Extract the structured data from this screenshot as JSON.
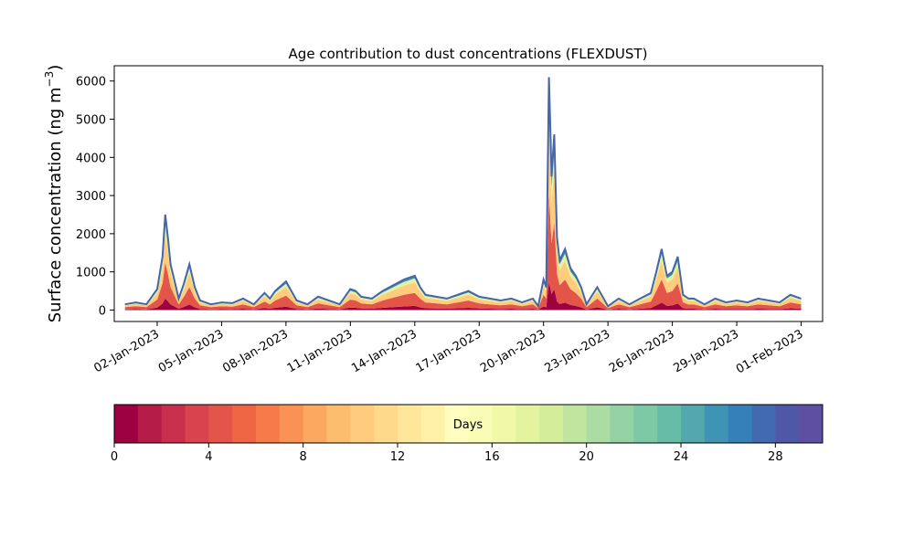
{
  "chart_data": {
    "type": "area",
    "subtype": "stacked",
    "title": "Age contribution to dust concentrations (FLEXDUST)",
    "ylabel": "Surface concentration (ng m",
    "ylabel_superscript": "−3",
    "ylabel_suffix": ")",
    "xlabel": "",
    "ylim": [
      -300,
      6400
    ],
    "xlim": [
      "2022-12-31",
      "2023-02-02"
    ],
    "yticks": [
      0,
      1000,
      2000,
      3000,
      4000,
      5000,
      6000
    ],
    "xtick_labels": [
      "02-Jan-2023",
      "05-Jan-2023",
      "08-Jan-2023",
      "11-Jan-2023",
      "14-Jan-2023",
      "17-Jan-2023",
      "20-Jan-2023",
      "23-Jan-2023",
      "26-Jan-2023",
      "29-Jan-2023",
      "01-Feb-2023"
    ],
    "xtick_dates": [
      "2023-01-02",
      "2023-01-05",
      "2023-01-08",
      "2023-01-11",
      "2023-01-14",
      "2023-01-17",
      "2023-01-20",
      "2023-01-23",
      "2023-01-26",
      "2023-01-29",
      "2023-02-01"
    ],
    "grid": false,
    "total_concentration": {
      "x": [
        "2022-12-31T12",
        "2023-01-01",
        "2023-01-01T12",
        "2023-01-01T18",
        "2023-01-02",
        "2023-01-02T06",
        "2023-01-02T09",
        "2023-01-02T12",
        "2023-01-02T15",
        "2023-01-02T18",
        "2023-01-03",
        "2023-01-03T06",
        "2023-01-03T12",
        "2023-01-03T18",
        "2023-01-04",
        "2023-01-04T06",
        "2023-01-04T12",
        "2023-01-05",
        "2023-01-05T12",
        "2023-01-06",
        "2023-01-06T12",
        "2023-01-07",
        "2023-01-07T06",
        "2023-01-07T12",
        "2023-01-08",
        "2023-01-08T12",
        "2023-01-09",
        "2023-01-09T12",
        "2023-01-10",
        "2023-01-10T12",
        "2023-01-11",
        "2023-01-11T06",
        "2023-01-11T12",
        "2023-01-12",
        "2023-01-12T12",
        "2023-01-13",
        "2023-01-13T12",
        "2023-01-14",
        "2023-01-14T06",
        "2023-01-14T12",
        "2023-01-15",
        "2023-01-15T12",
        "2023-01-16",
        "2023-01-16T12",
        "2023-01-17",
        "2023-01-17T12",
        "2023-01-18",
        "2023-01-18T12",
        "2023-01-19",
        "2023-01-19T12",
        "2023-01-19T18",
        "2023-01-20",
        "2023-01-20T03",
        "2023-01-20T06",
        "2023-01-20T09",
        "2023-01-20T12",
        "2023-01-20T15",
        "2023-01-20T18",
        "2023-01-21",
        "2023-01-21T06",
        "2023-01-21T12",
        "2023-01-21T18",
        "2023-01-22",
        "2023-01-22T12",
        "2023-01-23",
        "2023-01-23T06",
        "2023-01-23T12",
        "2023-01-24",
        "2023-01-24T12",
        "2023-01-25",
        "2023-01-25T06",
        "2023-01-25T12",
        "2023-01-25T18",
        "2023-01-26",
        "2023-01-26T06",
        "2023-01-26T12",
        "2023-01-26T18",
        "2023-01-27",
        "2023-01-27T12",
        "2023-01-28",
        "2023-01-28T12",
        "2023-01-29",
        "2023-01-29T12",
        "2023-01-30",
        "2023-01-30T12",
        "2023-01-31",
        "2023-01-31T12",
        "2023-02-01"
      ],
      "values": [
        150,
        200,
        150,
        350,
        550,
        1400,
        2500,
        1900,
        1200,
        900,
        300,
        700,
        1200,
        600,
        250,
        200,
        150,
        200,
        180,
        300,
        150,
        450,
        300,
        500,
        750,
        250,
        150,
        350,
        250,
        150,
        550,
        500,
        350,
        300,
        500,
        650,
        800,
        900,
        600,
        400,
        350,
        300,
        400,
        500,
        350,
        300,
        250,
        300,
        200,
        300,
        100,
        800,
        600,
        6100,
        3500,
        4600,
        1900,
        1300,
        1600,
        1100,
        900,
        600,
        150,
        600,
        100,
        200,
        300,
        150,
        300,
        450,
        1000,
        1600,
        900,
        1000,
        1400,
        400,
        300,
        300,
        150,
        300,
        200,
        250,
        200,
        300,
        250,
        200,
        400,
        300
      ]
    },
    "age_colormap": {
      "label": "Days",
      "range": [
        0,
        30
      ],
      "ticks": [
        0,
        4,
        8,
        12,
        16,
        20,
        24,
        28
      ],
      "colors": [
        "#9e0142",
        "#b41b46",
        "#c92f4c",
        "#d8434e",
        "#e45549",
        "#ef6645",
        "#f67a4a",
        "#f99254",
        "#fba860",
        "#fdbd6f",
        "#fecc7c",
        "#fed98b",
        "#fee69a",
        "#fff1a8",
        "#fffebe",
        "#f8fcb4",
        "#f0f9a8",
        "#e4f49e",
        "#d4ed9b",
        "#c0e59f",
        "#abdca4",
        "#94d2a4",
        "#7dc8a5",
        "#66bca6",
        "#52a8ad",
        "#3f94b6",
        "#3680b9",
        "#426ab0",
        "#4e58a6",
        "#5e4fa2"
      ]
    },
    "age_profile": [
      {
        "day_max": 1,
        "share": 0.12
      },
      {
        "day_max": 7,
        "share": 0.38
      },
      {
        "day_max": 14,
        "share": 0.3
      },
      {
        "day_max": 21,
        "share": 0.12
      },
      {
        "day_max": 30,
        "share": 0.08
      }
    ],
    "outline_color": "#4466aa"
  }
}
